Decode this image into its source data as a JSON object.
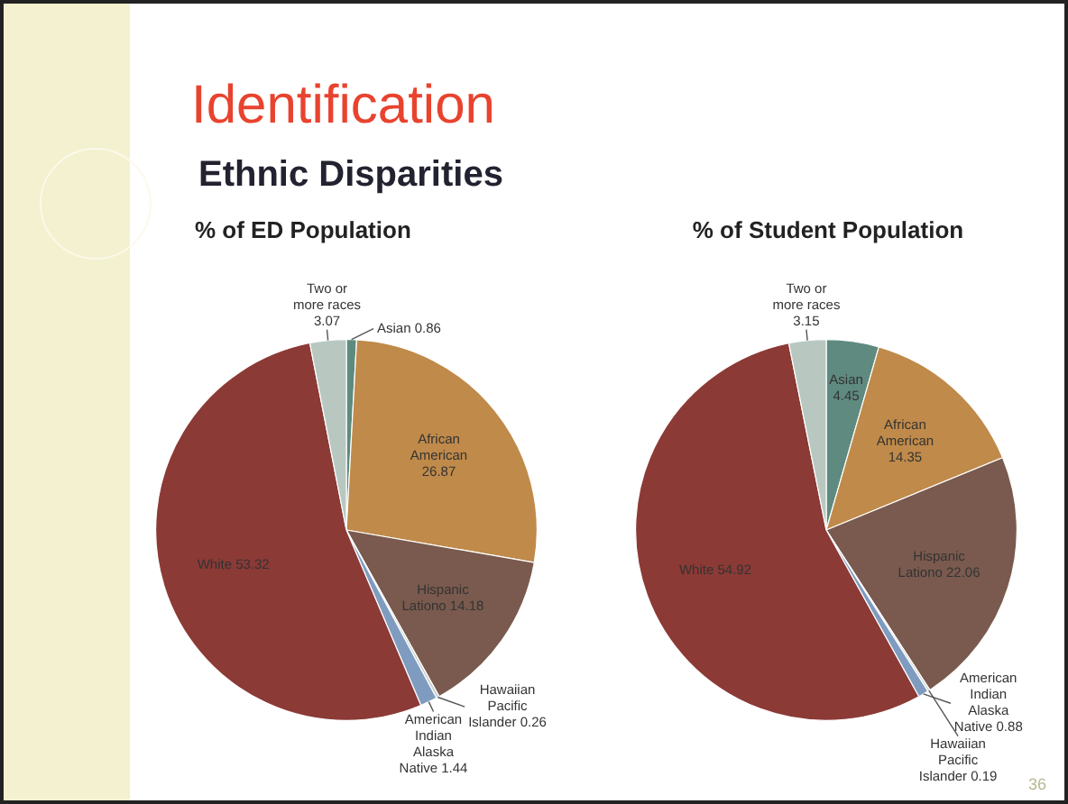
{
  "chart_data": [
    {
      "type": "other",
      "title": "Identification",
      "subtitle": "Ethnic Disparities",
      "annotations": [
        "36"
      ]
    },
    {
      "type": "pie",
      "title": "% of ED Population",
      "data_labels": true,
      "categories": [
        "Asian",
        "African American",
        "Hispanic Lationo",
        "Hawaiian Pacific Islander",
        "American Indian Alaska Native",
        "White",
        "Two or more races"
      ],
      "values": [
        0.86,
        26.87,
        14.18,
        0.26,
        1.44,
        53.32,
        3.07
      ],
      "colors": [
        "#5f8a80",
        "#c08a4a",
        "#7a5a4e",
        "#c9cfcb",
        "#7f9cc0",
        "#8b3a36",
        "#b8c8c0"
      ]
    },
    {
      "type": "pie",
      "title": "% of Student Population",
      "data_labels": true,
      "categories": [
        "Asian",
        "African American",
        "Hispanic Lationo",
        "Hawaiian Pacific Islander",
        "American Indian Alaska Native",
        "White",
        "Two or more races"
      ],
      "values": [
        4.45,
        14.35,
        22.06,
        0.19,
        0.88,
        54.92,
        3.15
      ],
      "colors": [
        "#5f8a80",
        "#c08a4a",
        "#7a5a4e",
        "#c9cfcb",
        "#7f9cc0",
        "#8b3a36",
        "#b8c8c0"
      ]
    }
  ]
}
